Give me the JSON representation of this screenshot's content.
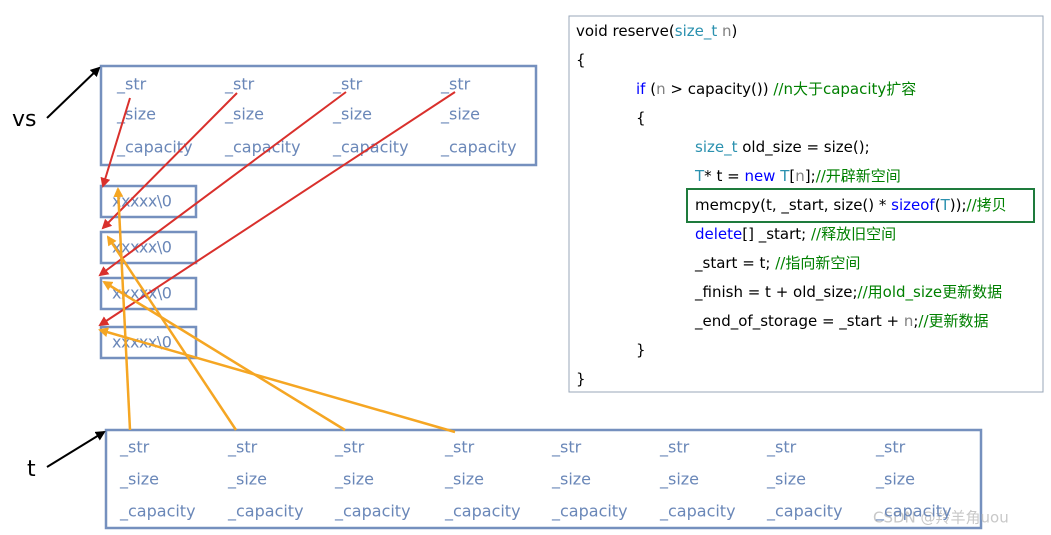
{
  "labels": {
    "vs": "vs",
    "t": "t"
  },
  "vs_fields": [
    [
      "_str",
      "_size",
      "_capacity"
    ],
    [
      "_str",
      "_size",
      "_capacity"
    ],
    [
      "_str",
      "_size",
      "_capacity"
    ],
    [
      "_str",
      "_size",
      "_capacity"
    ]
  ],
  "strings": [
    "xxxxx\\0",
    "xxxxx\\0",
    "xxxxx\\0",
    "xxxxx\\0"
  ],
  "t_fields": [
    [
      "_str",
      "_size",
      "_capacity"
    ],
    [
      "_str",
      "_size",
      "_capacity"
    ],
    [
      "_str",
      "_size",
      "_capacity"
    ],
    [
      "_str",
      "_size",
      "_capacity"
    ],
    [
      "_str",
      "_size",
      "_capacity"
    ],
    [
      "_str",
      "_size",
      "_capacity"
    ],
    [
      "_str",
      "_size",
      "_capacity"
    ],
    [
      "_str",
      "_size",
      "_capacity"
    ]
  ],
  "code": {
    "lines": [
      [
        {
          "text": "void reserve(",
          "color": "#000000"
        },
        {
          "text": "size_t",
          "color": "#2b91af"
        },
        {
          "text": " n",
          "color": "#808080"
        },
        {
          "text": ")",
          "color": "#000000"
        }
      ],
      [
        {
          "text": "{",
          "color": "#000000"
        }
      ],
      [
        {
          "text": "if",
          "color": "#0000ff"
        },
        {
          "text": " (",
          "color": "#000000"
        },
        {
          "text": "n",
          "color": "#808080"
        },
        {
          "text": " > capacity()) ",
          "color": "#000000"
        },
        {
          "text": "//n大于capacity扩容",
          "color": "#008000"
        }
      ],
      [
        {
          "text": "{",
          "color": "#000000"
        }
      ],
      [
        {
          "text": "size_t",
          "color": "#2b91af"
        },
        {
          "text": " old_size = size();",
          "color": "#000000"
        }
      ],
      [
        {
          "text": "T",
          "color": "#2b91af"
        },
        {
          "text": "* t = ",
          "color": "#000000"
        },
        {
          "text": "new",
          "color": "#0000ff"
        },
        {
          "text": " ",
          "color": "#000000"
        },
        {
          "text": "T",
          "color": "#2b91af"
        },
        {
          "text": "[",
          "color": "#000000"
        },
        {
          "text": "n",
          "color": "#808080"
        },
        {
          "text": "];",
          "color": "#000000"
        },
        {
          "text": "//开辟新空间",
          "color": "#008000"
        }
      ],
      [
        {
          "text": "memcpy(t, _start, size() * ",
          "color": "#000000"
        },
        {
          "text": "sizeof",
          "color": "#0000ff"
        },
        {
          "text": "(",
          "color": "#000000"
        },
        {
          "text": "T",
          "color": "#2b91af"
        },
        {
          "text": "));",
          "color": "#000000"
        },
        {
          "text": "//拷贝",
          "color": "#008000"
        }
      ],
      [
        {
          "text": "delete",
          "color": "#0000ff"
        },
        {
          "text": "[] _start; ",
          "color": "#000000"
        },
        {
          "text": "//释放旧空间",
          "color": "#008000"
        }
      ],
      [
        {
          "text": "_start = t; ",
          "color": "#000000"
        },
        {
          "text": "//指向新空间",
          "color": "#008000"
        }
      ],
      [
        {
          "text": "_finish = t + old_size;",
          "color": "#000000"
        },
        {
          "text": "//用old_size更新数据",
          "color": "#008000"
        }
      ],
      [
        {
          "text": "_end_of_storage = _start + ",
          "color": "#000000"
        },
        {
          "text": "n",
          "color": "#808080"
        },
        {
          "text": ";",
          "color": "#000000"
        },
        {
          "text": "//更新数据",
          "color": "#008000"
        }
      ],
      [
        {
          "text": "}",
          "color": "#000000"
        }
      ],
      [
        {
          "text": "}",
          "color": "#000000"
        }
      ]
    ]
  },
  "watermark": "CSDN @羚羊角uou"
}
